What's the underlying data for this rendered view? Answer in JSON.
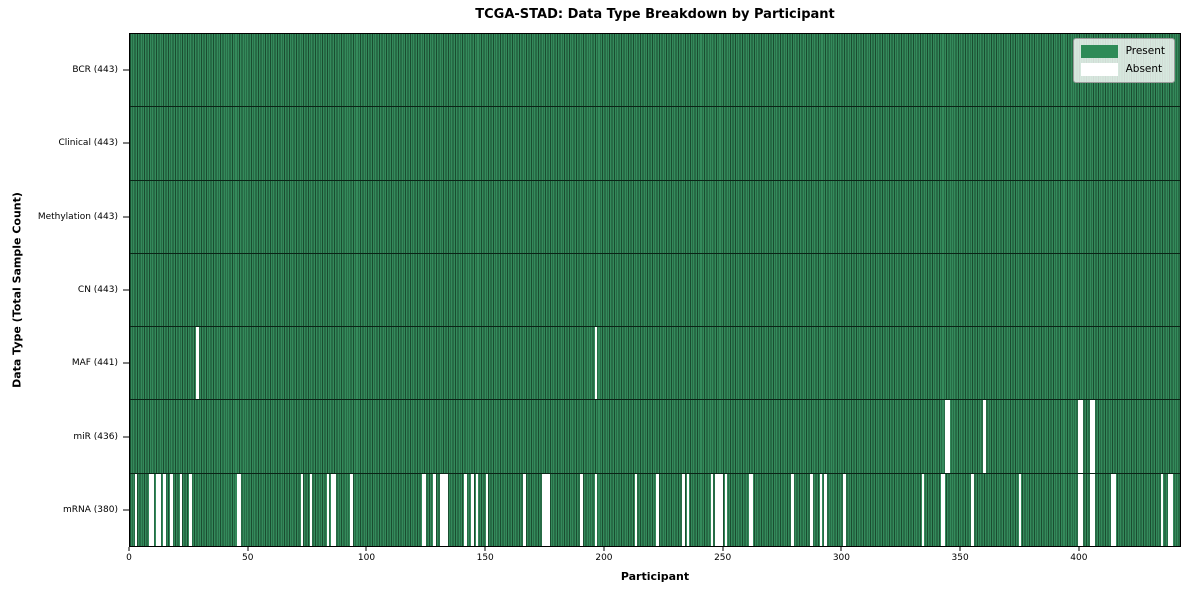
{
  "title": "TCGA-STAD: Data Type Breakdown by Participant",
  "x_axis_title": "Participant",
  "y_axis_title": "Data Type (Total Sample Count)",
  "legend": {
    "present_label": "Present",
    "absent_label": "Absent"
  },
  "colors": {
    "present": "#2e8b57",
    "present_edge": "#1a4d30",
    "absent": "#ffffff"
  },
  "chart_data": {
    "type": "heatmap",
    "title": "TCGA-STAD: Data Type Breakdown by Participant",
    "xlabel": "Participant",
    "ylabel": "Data Type (Total Sample Count)",
    "legend_entries": [
      "Present",
      "Absent"
    ],
    "legend_position": "upper right",
    "total_participants": 443,
    "x_range": [
      0,
      443
    ],
    "x_ticks": [
      0,
      50,
      100,
      150,
      200,
      250,
      300,
      350,
      400
    ],
    "rows": [
      {
        "name": "BCR",
        "label": "BCR (443)",
        "present_count": 443,
        "absent_count": 0,
        "absent_participants": []
      },
      {
        "name": "Clinical",
        "label": "Clinical (443)",
        "present_count": 443,
        "absent_count": 0,
        "absent_participants": []
      },
      {
        "name": "Methylation",
        "label": "Methylation (443)",
        "present_count": 443,
        "absent_count": 0,
        "absent_participants": []
      },
      {
        "name": "CN",
        "label": "CN (443)",
        "present_count": 443,
        "absent_count": 0,
        "absent_participants": []
      },
      {
        "name": "MAF",
        "label": "MAF (441)",
        "present_count": 441,
        "absent_count": 2,
        "absent_participants": [
          28,
          196
        ]
      },
      {
        "name": "miR",
        "label": "miR (436)",
        "present_count": 436,
        "absent_count": 7,
        "absent_participants": [
          344,
          345,
          360,
          400,
          401,
          405,
          406
        ]
      },
      {
        "name": "mRNA",
        "label": "mRNA (380)",
        "present_count": 380,
        "absent_count": 63,
        "absent_participants": [
          2,
          8,
          9,
          11,
          12,
          14,
          17,
          21,
          25,
          45,
          46,
          72,
          76,
          83,
          85,
          86,
          93,
          123,
          124,
          128,
          131,
          132,
          133,
          141,
          144,
          146,
          150,
          166,
          174,
          175,
          176,
          190,
          196,
          213,
          222,
          233,
          235,
          245,
          247,
          248,
          249,
          251,
          261,
          262,
          279,
          287,
          291,
          293,
          301,
          334,
          342,
          343,
          355,
          375,
          400,
          401,
          405,
          406,
          414,
          415,
          435,
          438,
          439
        ]
      }
    ]
  }
}
